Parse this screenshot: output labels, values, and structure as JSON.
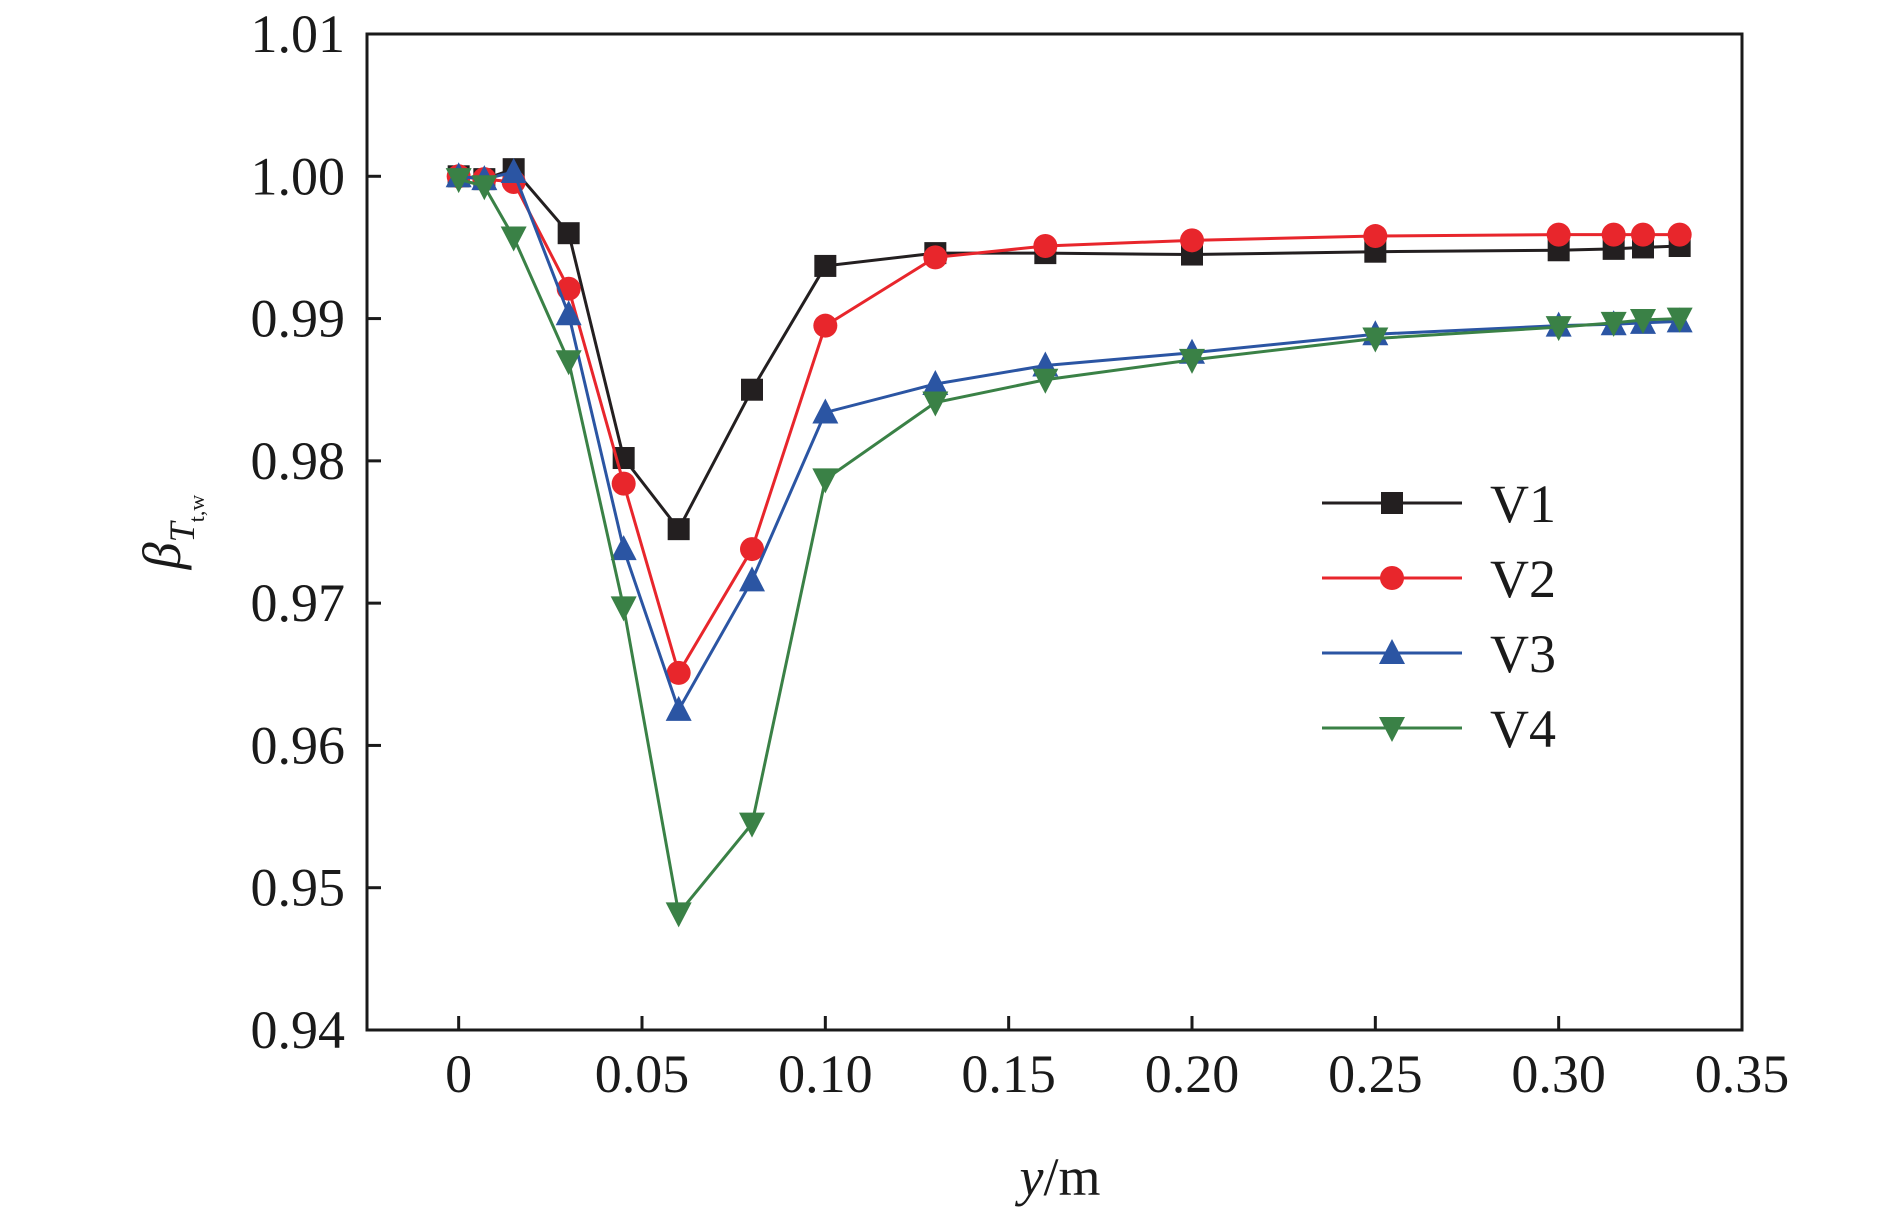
{
  "chart_data": {
    "type": "line",
    "xlabel_italic": "y",
    "xlabel_unit": "/m",
    "ylabel_symbol": "β",
    "ylabel_sub": "T",
    "ylabel_subsub": "t,w",
    "xlim": [
      -0.025,
      0.35
    ],
    "ylim": [
      0.94,
      1.01
    ],
    "xticks": [
      0,
      0.05,
      0.1,
      0.15,
      0.2,
      0.25,
      0.3,
      0.35
    ],
    "xtick_labels": [
      "0",
      "0.05",
      "0.10",
      "0.15",
      "0.20",
      "0.25",
      "0.30",
      "0.35"
    ],
    "yticks": [
      0.94,
      0.95,
      0.96,
      0.97,
      0.98,
      0.99,
      1.0,
      1.01
    ],
    "ytick_labels": [
      "0.94",
      "0.95",
      "0.96",
      "0.97",
      "0.98",
      "0.99",
      "1.00",
      "1.01"
    ],
    "grid": false,
    "legend_position": "center-right",
    "x": [
      0,
      0.007,
      0.015,
      0.03,
      0.045,
      0.06,
      0.08,
      0.1,
      0.13,
      0.16,
      0.2,
      0.25,
      0.3,
      0.315,
      0.323,
      0.333
    ],
    "series": [
      {
        "name": "V1",
        "color": "#231f20",
        "marker": "square",
        "values": [
          1.0,
          0.9998,
          1.0005,
          0.996,
          0.9802,
          0.9752,
          0.985,
          0.9937,
          0.9946,
          0.9946,
          0.9945,
          0.9947,
          0.9948,
          0.9949,
          0.995,
          0.9951
        ]
      },
      {
        "name": "V2",
        "color": "#e8262c",
        "marker": "circle",
        "values": [
          1.0,
          0.9998,
          0.9996,
          0.9921,
          0.9784,
          0.9651,
          0.9738,
          0.9895,
          0.9943,
          0.9951,
          0.9955,
          0.9958,
          0.9959,
          0.9959,
          0.9959,
          0.9959
        ]
      },
      {
        "name": "V3",
        "color": "#2b55a3",
        "marker": "triangle-up",
        "values": [
          1.0,
          0.9998,
          1.0003,
          0.9903,
          0.9738,
          0.9625,
          0.9716,
          0.9834,
          0.9854,
          0.9867,
          0.9876,
          0.9889,
          0.9895,
          0.9896,
          0.9897,
          0.9898
        ]
      },
      {
        "name": "V4",
        "color": "#3a8146",
        "marker": "triangle-down",
        "values": [
          0.9998,
          0.9993,
          0.9957,
          0.987,
          0.9697,
          0.9482,
          0.9545,
          0.9787,
          0.9841,
          0.9857,
          0.9871,
          0.9886,
          0.9894,
          0.9897,
          0.9899,
          0.99
        ]
      }
    ]
  }
}
